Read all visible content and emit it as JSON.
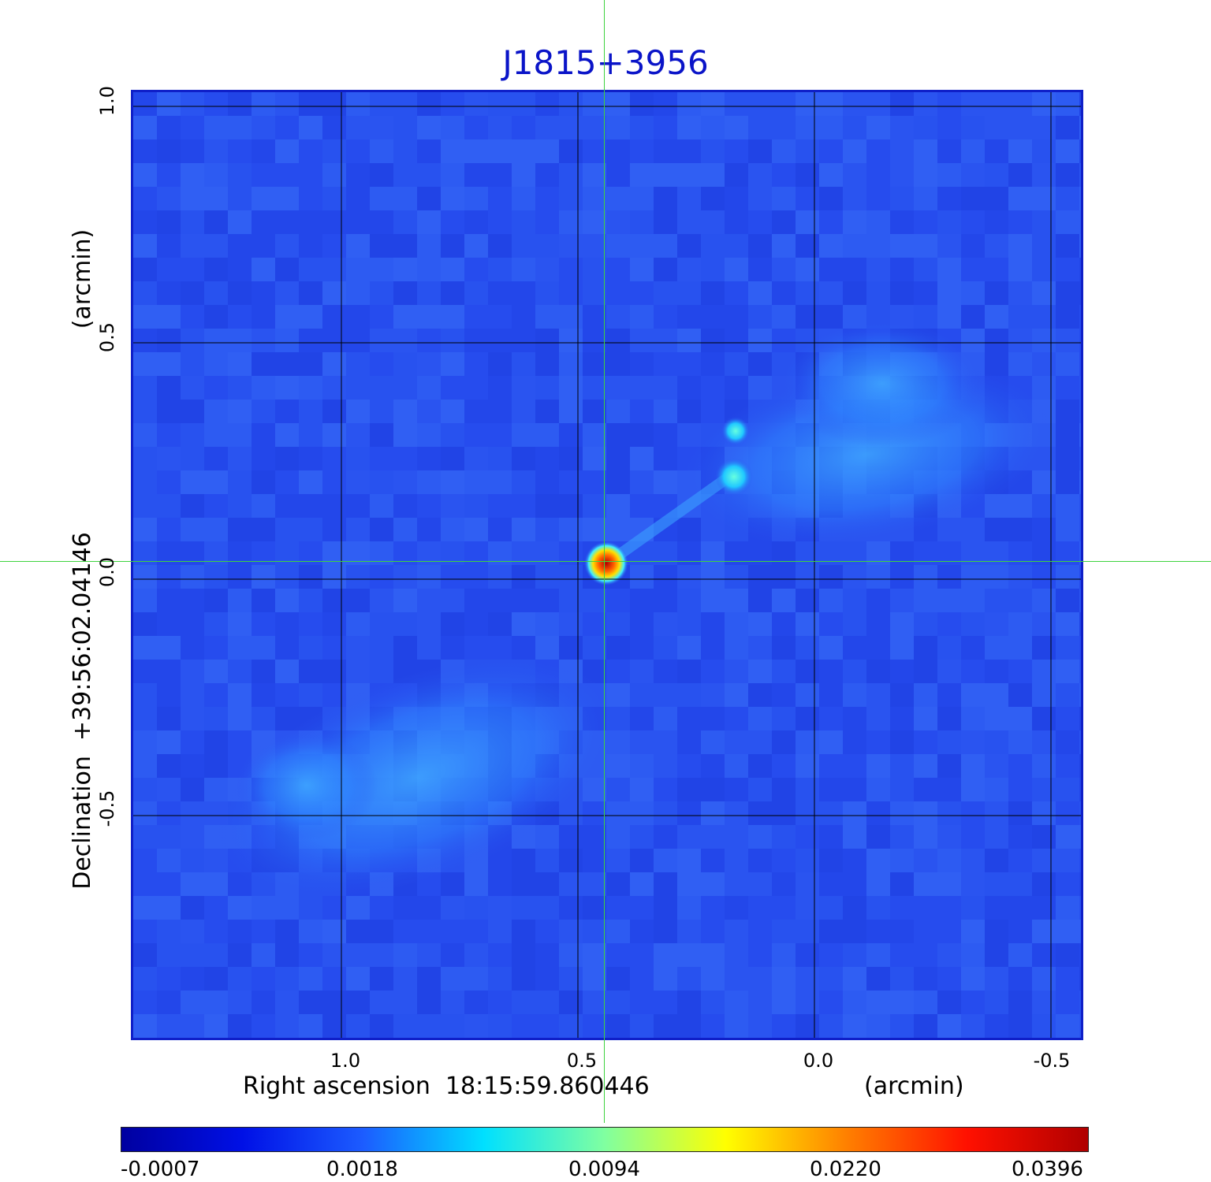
{
  "title": "J1815+3956",
  "colors": {
    "title": "#0a14c8",
    "frame": "#0f1fc8",
    "background_map": "#2a54f0",
    "crosshair": "#3fd33f",
    "grid": "#000000"
  },
  "x_axis": {
    "label": "Right ascension  18:15:59.860446",
    "unit": "(arcmin)",
    "ticks": [
      "1.0",
      "0.5",
      "0.0",
      "-0.5"
    ],
    "range": [
      1.5,
      -0.6
    ]
  },
  "y_axis": {
    "label": "Declination  +39:56:02.04146",
    "unit": "(arcmin)",
    "ticks": [
      "1.0",
      "0.5",
      "0.0",
      "-0.5"
    ],
    "range": [
      -1.0,
      1.0
    ]
  },
  "colorbar": {
    "labels": [
      "-0.0007",
      "0.0018",
      "0.0094",
      "0.0220",
      "0.0396"
    ],
    "colormap": [
      "#0000a0",
      "#0010e6",
      "#1c5cff",
      "#00e0ff",
      "#80ffa0",
      "#ffff00",
      "#ff8000",
      "#ff1000",
      "#b00000"
    ]
  }
}
